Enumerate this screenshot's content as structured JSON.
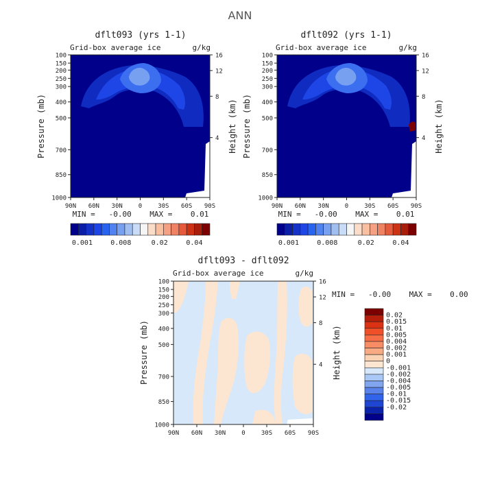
{
  "page_title": "ANN",
  "chart_data": [
    {
      "type": "heatmap",
      "title": "dflt093 (yrs 1-1)",
      "left_label": "Grid-box average ice",
      "units": "g/kg",
      "ylabel": "Pressure (mb)",
      "ylabel_right": "Height (km)",
      "x_ticks": [
        "90N",
        "60N",
        "30N",
        "0",
        "30S",
        "60S",
        "90S"
      ],
      "y_ticks": [
        "100",
        "150",
        "200",
        "250",
        "300",
        "400",
        "500",
        "700",
        "850",
        "1000"
      ],
      "y_ticks_right": [
        "16",
        "12",
        "8",
        "4"
      ],
      "min_max": "MIN =   -0.00    MAX =    0.01",
      "colorbar_labels": [
        "0.001",
        "0.008",
        "0.02",
        "0.04"
      ],
      "colors": [
        "#00008b",
        "#0a1ea6",
        "#1432c8",
        "#1e46e6",
        "#2864f0",
        "#5082f0",
        "#78a0f0",
        "#a0bef0",
        "#c8dcf8",
        "#f5f5f5",
        "#fadcc8",
        "#f8c0a0",
        "#f5a082",
        "#f08264",
        "#e65a3c",
        "#cc3214",
        "#a81e0a",
        "#7d0000"
      ],
      "grid": false
    },
    {
      "type": "heatmap",
      "title": "dflt092 (yrs 1-1)",
      "left_label": "Grid-box average ice",
      "units": "g/kg",
      "ylabel": "Pressure (mb)",
      "ylabel_right": "Height (km)",
      "x_ticks": [
        "90N",
        "60N",
        "30N",
        "0",
        "30S",
        "60S",
        "90S"
      ],
      "y_ticks": [
        "100",
        "150",
        "200",
        "250",
        "300",
        "400",
        "500",
        "700",
        "850",
        "1000"
      ],
      "y_ticks_right": [
        "16",
        "12",
        "8",
        "4"
      ],
      "min_max": "MIN =   -0.00    MAX =    0.01",
      "colorbar_labels": [
        "0.001",
        "0.008",
        "0.02",
        "0.04"
      ],
      "colors": [
        "#00008b",
        "#0a1ea6",
        "#1432c8",
        "#1e46e6",
        "#2864f0",
        "#5082f0",
        "#78a0f0",
        "#a0bef0",
        "#c8dcf8",
        "#f5f5f5",
        "#fadcc8",
        "#f8c0a0",
        "#f5a082",
        "#f08264",
        "#e65a3c",
        "#cc3214",
        "#a81e0a",
        "#7d0000"
      ],
      "grid": false
    },
    {
      "type": "heatmap",
      "title": "dflt093 - dflt092",
      "left_label": "Grid-box average ice",
      "units": "g/kg",
      "ylabel": "Pressure (mb)",
      "ylabel_right": "Height (km)",
      "x_ticks": [
        "90N",
        "60N",
        "30N",
        "0",
        "30S",
        "60S",
        "90S"
      ],
      "y_ticks": [
        "100",
        "150",
        "200",
        "250",
        "300",
        "400",
        "500",
        "700",
        "850",
        "1000"
      ],
      "y_ticks_right": [
        "16",
        "12",
        "8",
        "4"
      ],
      "min_max": "MIN =   -0.00    MAX =    0.00",
      "colorbar_labels": [
        "0.02",
        "0.015",
        "0.01",
        "0.005",
        "0.004",
        "0.002",
        "0.001",
        "0",
        "-0.001",
        "-0.002",
        "-0.004",
        "-0.005",
        "-0.01",
        "-0.015",
        "-0.02"
      ],
      "colors": [
        "#7d0000",
        "#b41e0a",
        "#dc3214",
        "#f05028",
        "#f56e46",
        "#f88c64",
        "#f8aa82",
        "#fad2b4",
        "#fce6d2",
        "#d6e8fa",
        "#aac8f5",
        "#82a5f0",
        "#5a82eb",
        "#3264eb",
        "#1e46d2",
        "#0a23aa",
        "#00008b"
      ],
      "grid": false
    }
  ]
}
